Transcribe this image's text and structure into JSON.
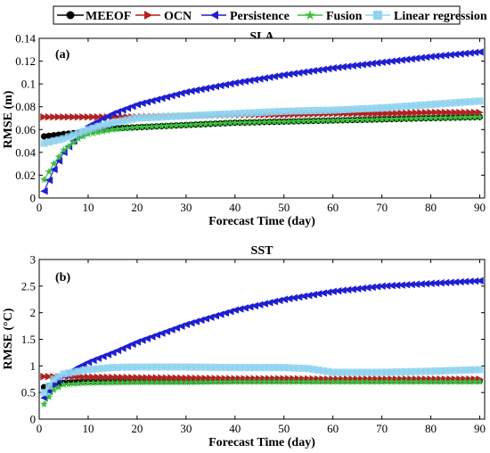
{
  "legend": {
    "items": [
      {
        "label": "MEEOF",
        "color": "#000000",
        "marker": "circle"
      },
      {
        "label": "OCN",
        "color": "#b22222",
        "marker": "triangle-right"
      },
      {
        "label": "Persistence",
        "color": "#1f1fd1",
        "marker": "triangle-left"
      },
      {
        "label": "Fusion",
        "color": "#3cbf3c",
        "marker": "star"
      },
      {
        "label": "Linear regression",
        "color": "#8fd3ee",
        "marker": "square"
      }
    ]
  },
  "chart_data": [
    {
      "type": "line",
      "title": "SLA",
      "panel_label": "(a)",
      "xlabel": "Forecast Time (day)",
      "ylabel": "RMSE (m)",
      "xlim": [
        0,
        91
      ],
      "ylim": [
        0,
        0.14
      ],
      "xticks": [
        "0",
        "10",
        "20",
        "30",
        "40",
        "50",
        "60",
        "70",
        "80",
        "90"
      ],
      "yticks": [
        "0",
        "0.02",
        "0.04",
        "0.06",
        "0.08",
        "0.1",
        "0.12",
        "0.14"
      ],
      "x_range": [
        1,
        90
      ],
      "series": [
        {
          "name": "MEEOF",
          "color": "#000000",
          "marker": "circle",
          "x": [
            1,
            5,
            10,
            15,
            20,
            30,
            40,
            50,
            60,
            70,
            80,
            90
          ],
          "values": [
            0.054,
            0.056,
            0.058,
            0.061,
            0.062,
            0.064,
            0.066,
            0.067,
            0.068,
            0.069,
            0.07,
            0.071
          ]
        },
        {
          "name": "OCN",
          "color": "#b22222",
          "marker": "triangle-right",
          "x": [
            1,
            5,
            10,
            15,
            20,
            30,
            40,
            50,
            60,
            70,
            80,
            90
          ],
          "values": [
            0.071,
            0.071,
            0.071,
            0.071,
            0.071,
            0.072,
            0.073,
            0.073,
            0.074,
            0.074,
            0.075,
            0.075
          ]
        },
        {
          "name": "Persistence",
          "color": "#1f1fd1",
          "marker": "triangle-left",
          "x": [
            1,
            3,
            5,
            8,
            10,
            15,
            20,
            30,
            40,
            50,
            60,
            70,
            80,
            90
          ],
          "values": [
            0.006,
            0.025,
            0.04,
            0.055,
            0.063,
            0.074,
            0.082,
            0.093,
            0.101,
            0.108,
            0.114,
            0.119,
            0.124,
            0.128
          ]
        },
        {
          "name": "Fusion",
          "color": "#3cbf3c",
          "marker": "star",
          "x": [
            1,
            3,
            5,
            8,
            10,
            15,
            20,
            30,
            40,
            50,
            60,
            70,
            80,
            90
          ],
          "values": [
            0.016,
            0.03,
            0.042,
            0.052,
            0.056,
            0.06,
            0.062,
            0.064,
            0.066,
            0.067,
            0.068,
            0.069,
            0.07,
            0.071
          ]
        },
        {
          "name": "Linear regression",
          "color": "#8fd3ee",
          "marker": "square",
          "x": [
            1,
            5,
            10,
            15,
            20,
            30,
            40,
            50,
            60,
            70,
            80,
            90
          ],
          "values": [
            0.048,
            0.052,
            0.06,
            0.066,
            0.07,
            0.072,
            0.074,
            0.076,
            0.077,
            0.079,
            0.082,
            0.085
          ]
        }
      ]
    },
    {
      "type": "line",
      "title": "SST",
      "panel_label": "(b)",
      "xlabel": "Forecast Time (day)",
      "ylabel": "RMSE (°C)",
      "xlim": [
        0,
        91
      ],
      "ylim": [
        0,
        3
      ],
      "xticks": [
        "0",
        "10",
        "20",
        "30",
        "40",
        "50",
        "60",
        "70",
        "80",
        "90"
      ],
      "yticks": [
        "0",
        "0.5",
        "1",
        "1.5",
        "2",
        "2.5",
        "3"
      ],
      "x_range": [
        1,
        90
      ],
      "series": [
        {
          "name": "MEEOF",
          "color": "#000000",
          "marker": "circle",
          "x": [
            1,
            3,
            5,
            10,
            20,
            30,
            40,
            50,
            60,
            70,
            80,
            90
          ],
          "values": [
            0.6,
            0.65,
            0.68,
            0.7,
            0.71,
            0.71,
            0.72,
            0.72,
            0.72,
            0.72,
            0.72,
            0.72
          ]
        },
        {
          "name": "OCN",
          "color": "#b22222",
          "marker": "triangle-right",
          "x": [
            1,
            5,
            10,
            20,
            30,
            40,
            50,
            60,
            70,
            80,
            90
          ],
          "values": [
            0.8,
            0.8,
            0.79,
            0.78,
            0.77,
            0.76,
            0.76,
            0.75,
            0.75,
            0.75,
            0.75
          ]
        },
        {
          "name": "Persistence",
          "color": "#1f1fd1",
          "marker": "triangle-left",
          "x": [
            1,
            3,
            5,
            8,
            10,
            15,
            20,
            30,
            40,
            50,
            60,
            70,
            80,
            90
          ],
          "values": [
            0.4,
            0.65,
            0.82,
            0.98,
            1.07,
            1.25,
            1.45,
            1.78,
            2.05,
            2.25,
            2.4,
            2.5,
            2.55,
            2.6
          ]
        },
        {
          "name": "Fusion",
          "color": "#3cbf3c",
          "marker": "star",
          "x": [
            1,
            3,
            5,
            10,
            20,
            30,
            40,
            50,
            60,
            70,
            80,
            90
          ],
          "values": [
            0.28,
            0.55,
            0.65,
            0.68,
            0.69,
            0.69,
            0.7,
            0.7,
            0.7,
            0.7,
            0.7,
            0.7
          ]
        },
        {
          "name": "Linear regression",
          "color": "#8fd3ee",
          "marker": "square",
          "x": [
            1,
            3,
            5,
            10,
            15,
            20,
            30,
            40,
            50,
            55,
            60,
            70,
            80,
            90
          ],
          "values": [
            0.5,
            0.75,
            0.85,
            0.93,
            0.97,
            0.98,
            0.98,
            0.97,
            0.97,
            0.95,
            0.88,
            0.88,
            0.9,
            0.93
          ]
        }
      ]
    }
  ]
}
